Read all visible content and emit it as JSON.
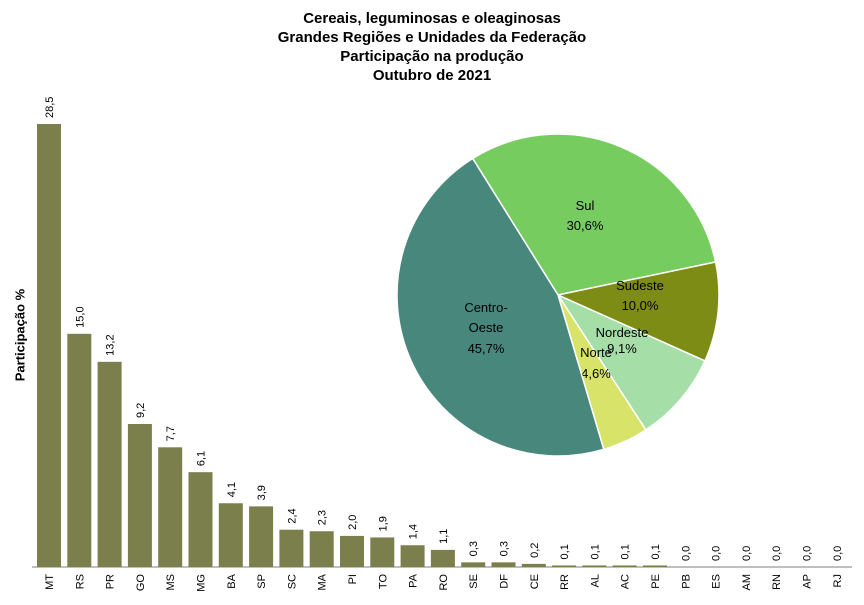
{
  "chart_data": [
    {
      "type": "bar",
      "title": [
        "Cereais, leguminosas e oleaginosas",
        "Grandes Regiões e Unidades da Federação",
        "Participação na produção",
        "Outubro de 2021"
      ],
      "ylabel": "Participação %",
      "ylim": [
        0,
        30
      ],
      "grid": false,
      "bar_color": "#7a7f4b",
      "categories": [
        "MT",
        "RS",
        "PR",
        "GO",
        "MS",
        "MG",
        "BA",
        "SP",
        "SC",
        "MA",
        "PI",
        "TO",
        "PA",
        "RO",
        "SE",
        "DF",
        "CE",
        "RR",
        "AL",
        "AC",
        "PE",
        "PB",
        "ES",
        "AM",
        "RN",
        "AP",
        "RJ"
      ],
      "values": [
        28.5,
        15.0,
        13.2,
        9.2,
        7.7,
        6.1,
        4.1,
        3.9,
        2.4,
        2.3,
        2.0,
        1.9,
        1.4,
        1.1,
        0.3,
        0.3,
        0.2,
        0.1,
        0.1,
        0.1,
        0.1,
        0.0,
        0.0,
        0.0,
        0.0,
        0.0,
        0.0
      ],
      "value_labels": [
        "28,5",
        "15,0",
        "13,2",
        "9,2",
        "7,7",
        "6,1",
        "4,1",
        "3,9",
        "2,4",
        "2,3",
        "2,0",
        "1,9",
        "1,4",
        "1,1",
        "0,3",
        "0,3",
        "0,2",
        "0,1",
        "0,1",
        "0,1",
        "0,1",
        "0,0",
        "0,0",
        "0,0",
        "0,0",
        "0,0",
        "0,0"
      ]
    },
    {
      "type": "pie",
      "slices": [
        {
          "name": "Sul",
          "value": 30.6,
          "label": "30,6%",
          "color": "#77cc60"
        },
        {
          "name": "Sudeste",
          "value": 10.0,
          "label": "10,0%",
          "color": "#7c8c14"
        },
        {
          "name": "Nordeste",
          "value": 9.1,
          "label": "9,1%",
          "color": "#a6dea8"
        },
        {
          "name": "Norte",
          "value": 4.6,
          "label": "4,6%",
          "color": "#d8e36a"
        },
        {
          "name": "Centro-Oeste",
          "value": 45.7,
          "label": "45,7%",
          "name_lines": [
            "Centro-",
            "Oeste"
          ],
          "color": "#48877b"
        }
      ]
    }
  ]
}
